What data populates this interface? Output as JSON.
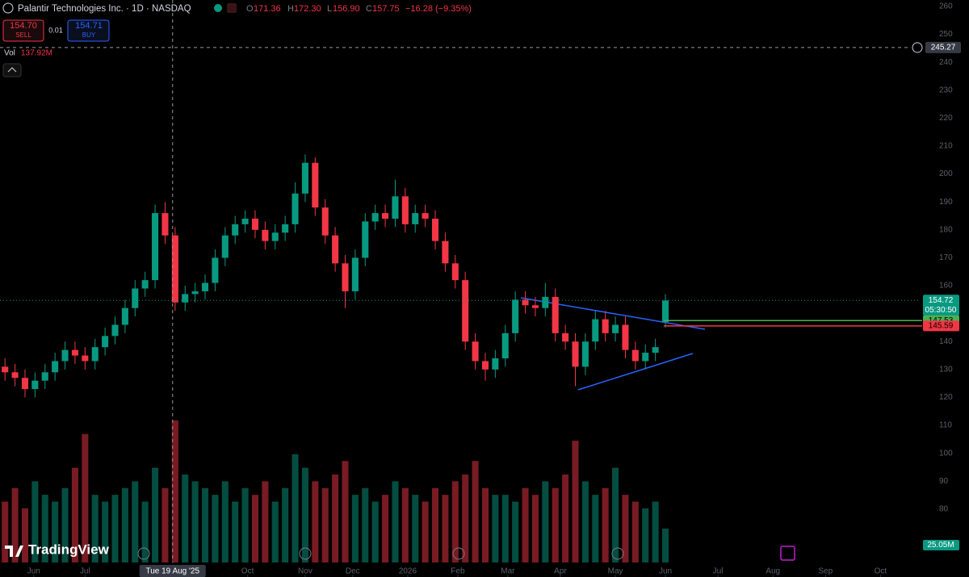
{
  "header": {
    "title": "Palantir Technologies Inc. · 1D · NASDAQ",
    "ohlc": [
      {
        "label": "O",
        "value": "171.36"
      },
      {
        "label": "H",
        "value": "172.30"
      },
      {
        "label": "L",
        "value": "156.90"
      },
      {
        "label": "C",
        "value": "157.75"
      }
    ],
    "change": "−16.28 (−9.35%)",
    "sell": {
      "price": "154.70",
      "label": "SELL"
    },
    "spread": "0.01",
    "buy": {
      "price": "154.71",
      "label": "BUY"
    },
    "vol_label": "Vol",
    "vol_value": "137.92M",
    "brand": "TradingView"
  },
  "chart_data": {
    "type": "candlestick",
    "up_color": "#089981",
    "down_color": "#f23645",
    "grid": false,
    "xlim": [
      0,
      368
    ],
    "ylim": [
      55.7,
      262.3
    ],
    "volume_ylim": [
      0,
      170
    ],
    "yticks": [
      80,
      90,
      100,
      110,
      120,
      130,
      140,
      150,
      160,
      170,
      180,
      190,
      200,
      210,
      220,
      230,
      240,
      250,
      260
    ],
    "xticks": [
      {
        "value": 13.5,
        "label": "Jun"
      },
      {
        "value": 34,
        "label": "Jul"
      },
      {
        "value": 99,
        "label": "Oct"
      },
      {
        "value": 122,
        "label": "Nov"
      },
      {
        "value": 141,
        "label": "Dec"
      },
      {
        "value": 163,
        "label": "2026"
      },
      {
        "value": 183,
        "label": "Feb"
      },
      {
        "value": 203,
        "label": "Mar"
      },
      {
        "value": 224,
        "label": "Apr"
      },
      {
        "value": 246,
        "label": "May"
      },
      {
        "value": 266,
        "label": "Jun"
      },
      {
        "value": 287,
        "label": "Jul"
      },
      {
        "value": 309,
        "label": "Aug"
      },
      {
        "value": 330,
        "label": "Sep"
      },
      {
        "value": 352,
        "label": "Oct"
      }
    ],
    "x": [
      2,
      6,
      10,
      14,
      18,
      22,
      26,
      30,
      34,
      38,
      42,
      46,
      50,
      54,
      58,
      62,
      66,
      70,
      74,
      78,
      82,
      86,
      90,
      94,
      98,
      102,
      106,
      110,
      114,
      118,
      122,
      126,
      130,
      134,
      138,
      142,
      146,
      150,
      154,
      158,
      162,
      166,
      170,
      174,
      178,
      182,
      186,
      190,
      194,
      198,
      202,
      206,
      210,
      214,
      218,
      222,
      226,
      230,
      234,
      238,
      242,
      246,
      250,
      254,
      258,
      262,
      266
    ],
    "open": [
      131,
      129,
      127,
      123,
      126,
      129,
      133,
      137,
      135,
      133,
      138,
      142,
      146,
      152,
      159,
      162,
      186,
      178,
      154,
      157,
      158,
      161,
      170,
      178,
      182,
      184,
      180,
      176,
      179,
      182,
      193,
      204,
      188,
      178,
      168,
      158,
      170,
      183,
      186,
      184,
      192,
      182,
      186,
      184,
      176,
      168,
      162,
      140,
      133,
      130,
      134,
      143,
      155,
      153,
      152,
      156,
      143,
      140,
      131,
      140,
      148,
      143,
      146,
      137,
      133,
      136,
      147
    ],
    "high": [
      134,
      132,
      130,
      129,
      132,
      136,
      140,
      140,
      138,
      141,
      145,
      149,
      155,
      162,
      165,
      189,
      190,
      181,
      160,
      161,
      164,
      173,
      181,
      185,
      187,
      187,
      183,
      182,
      185,
      197,
      207,
      206,
      191,
      181,
      171,
      173,
      186,
      189,
      189,
      198,
      195,
      189,
      189,
      187,
      179,
      171,
      165,
      143,
      136,
      137,
      146,
      158,
      158,
      156,
      161,
      159,
      146,
      143,
      143,
      151,
      151,
      149,
      149,
      140,
      139,
      141,
      157
    ],
    "low": [
      126,
      124,
      120,
      120,
      123,
      126,
      130,
      132,
      130,
      130,
      135,
      139,
      143,
      149,
      156,
      159,
      175,
      151,
      151,
      154,
      155,
      158,
      167,
      175,
      179,
      177,
      173,
      173,
      176,
      179,
      190,
      185,
      175,
      165,
      152,
      155,
      167,
      180,
      181,
      181,
      179,
      179,
      181,
      173,
      165,
      159,
      137,
      130,
      126,
      127,
      131,
      140,
      150,
      149,
      149,
      140,
      137,
      124,
      128,
      137,
      140,
      140,
      134,
      130,
      130,
      133,
      145
    ],
    "close": [
      129,
      127,
      123,
      126,
      129,
      133,
      137,
      135,
      133,
      138,
      142,
      146,
      152,
      159,
      162,
      186,
      178,
      154,
      157,
      158,
      161,
      170,
      178,
      182,
      184,
      180,
      176,
      179,
      182,
      193,
      204,
      188,
      178,
      168,
      158,
      170,
      183,
      186,
      184,
      192,
      182,
      186,
      184,
      176,
      168,
      162,
      140,
      133,
      130,
      134,
      143,
      155,
      153,
      152,
      156,
      143,
      140,
      131,
      140,
      148,
      143,
      146,
      137,
      133,
      136,
      138,
      154.72
    ],
    "volume": [
      45,
      55,
      40,
      60,
      50,
      45,
      55,
      70,
      95,
      50,
      45,
      50,
      55,
      60,
      45,
      70,
      55,
      105,
      65,
      60,
      55,
      50,
      60,
      45,
      55,
      50,
      60,
      45,
      55,
      80,
      70,
      60,
      55,
      65,
      75,
      50,
      55,
      45,
      50,
      60,
      55,
      50,
      45,
      55,
      50,
      60,
      65,
      75,
      55,
      50,
      50,
      45,
      55,
      50,
      60,
      55,
      65,
      90,
      60,
      50,
      55,
      70,
      50,
      45,
      40,
      45,
      25.05
    ],
    "volume_last_label": "25.05M",
    "last_price": 154.72,
    "countdown": "05:30:50",
    "levels": [
      {
        "value": 147.53,
        "color": "#4caf50"
      },
      {
        "value": 145.59,
        "color": "#f23645"
      }
    ],
    "crosshair": {
      "x": {
        "value": 69,
        "label": "Tue 19 Aug '25"
      },
      "y": 245.27
    }
  }
}
